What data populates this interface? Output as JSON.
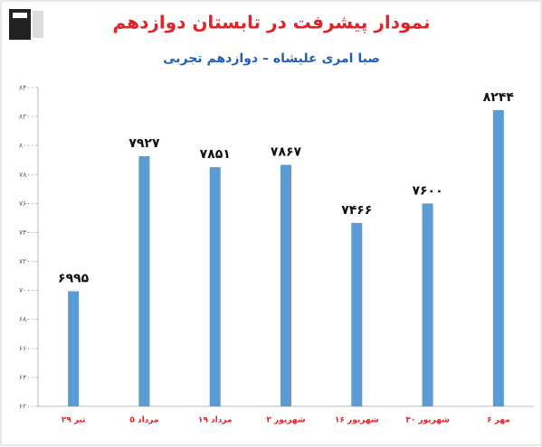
{
  "chart_data": {
    "type": "bar",
    "title": "نمودار پیشرفت در تابستان دوازدهم",
    "subtitle": "صبا امری علیشاه – دوازدهم تجربی",
    "categories": [
      "۲۹ تیر",
      "۵ مرداد",
      "۱۹ مرداد",
      "۲ شهریور",
      "۱۶ شهریور",
      "۳۰ شهریور",
      "۶ مهر"
    ],
    "values": [
      6995,
      7927,
      7851,
      7867,
      7466,
      7600,
      8244
    ],
    "value_labels": [
      "۶۹۹۵",
      "۷۹۲۷",
      "۷۸۵۱",
      "۷۸۶۷",
      "۷۴۶۶",
      "۷۶۰۰",
      "۸۲۴۴"
    ],
    "color": "#5b9bd5",
    "ylim": [
      6200,
      8400
    ],
    "yticks": [
      {
        "value": 6200,
        "label": "۶۲۰۰"
      },
      {
        "value": 6400,
        "label": "۶۴۰۰"
      },
      {
        "value": 6600,
        "label": "۶۶۰۰"
      },
      {
        "value": 6800,
        "label": "۶۸۰۰"
      },
      {
        "value": 7000,
        "label": "۷۰۰۰"
      },
      {
        "value": 7200,
        "label": "۷۲۰۰"
      },
      {
        "value": 7400,
        "label": "۷۴۰۰"
      },
      {
        "value": 7600,
        "label": "۷۶۰۰"
      },
      {
        "value": 7800,
        "label": "۷۸۰۰"
      },
      {
        "value": 8000,
        "label": "۸۰۰۰"
      },
      {
        "value": 8200,
        "label": "۸۲۰۰"
      },
      {
        "value": 8400,
        "label": "۸۴۰۰"
      }
    ],
    "grid": false
  }
}
